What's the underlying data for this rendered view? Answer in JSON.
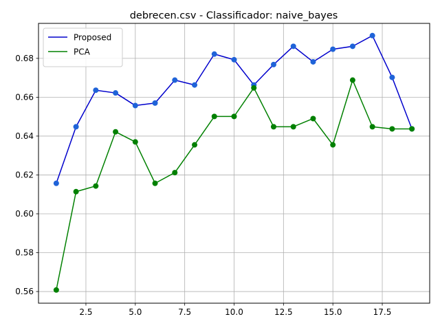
{
  "chart_data": {
    "type": "line",
    "title": "debrecen.csv - Classificador: naive_bayes",
    "xlabel": "",
    "ylabel": "",
    "x": [
      1,
      2,
      3,
      4,
      5,
      6,
      7,
      8,
      9,
      10,
      11,
      12,
      13,
      14,
      15,
      16,
      17,
      18,
      19
    ],
    "xlim": [
      0.1,
      19.9
    ],
    "ylim": [
      0.554,
      0.698
    ],
    "xticks": [
      2.5,
      5.0,
      7.5,
      10.0,
      12.5,
      15.0,
      17.5
    ],
    "xtick_labels": [
      "2.5",
      "5.0",
      "7.5",
      "10.0",
      "12.5",
      "15.0",
      "17.5"
    ],
    "yticks": [
      0.56,
      0.58,
      0.6,
      0.62,
      0.64,
      0.66,
      0.68
    ],
    "ytick_labels": [
      "0.56",
      "0.58",
      "0.60",
      "0.62",
      "0.64",
      "0.66",
      "0.68"
    ],
    "grid": true,
    "legend_position": "top-left",
    "series": [
      {
        "name": "Proposed",
        "color": "#0000cc",
        "marker_color": "#1f63d8",
        "values": [
          0.6157,
          0.6448,
          0.6636,
          0.6622,
          0.6557,
          0.657,
          0.6688,
          0.6663,
          0.6822,
          0.6793,
          0.6663,
          0.6768,
          0.6862,
          0.6782,
          0.6847,
          0.6862,
          0.6917,
          0.6702,
          0.6437
        ]
      },
      {
        "name": "PCA",
        "color": "#008000",
        "marker_color": "#008000",
        "values": [
          0.5608,
          0.6114,
          0.6143,
          0.6422,
          0.637,
          0.6157,
          0.6212,
          0.6355,
          0.6501,
          0.6501,
          0.6648,
          0.6448,
          0.6448,
          0.649,
          0.6355,
          0.6688,
          0.6448,
          0.6437,
          0.6437
        ]
      }
    ]
  }
}
